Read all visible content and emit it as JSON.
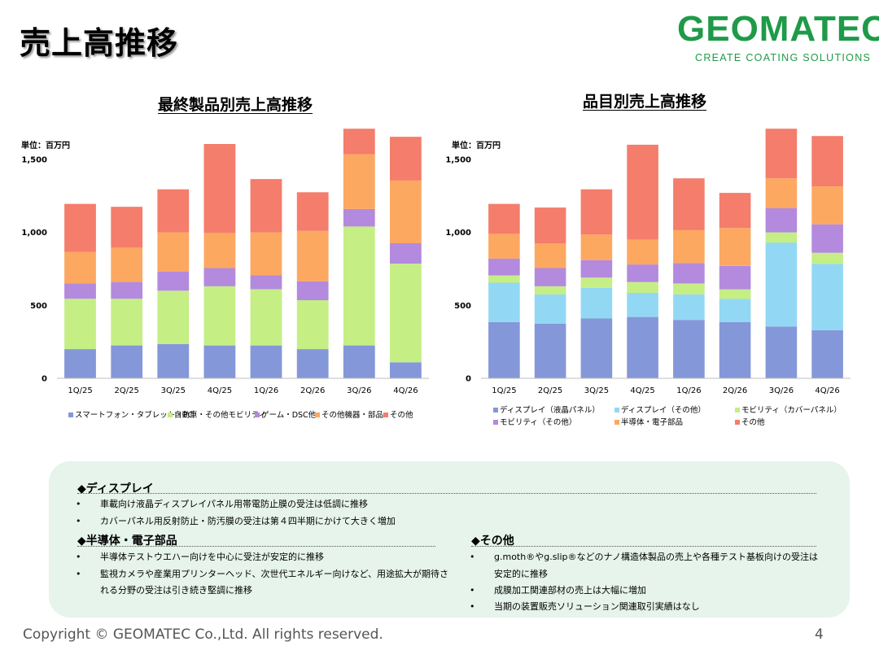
{
  "title": "売上高推移",
  "logo": {
    "name": "GEOMATEC",
    "tagline": "CREATE COATING SOLUTIONS"
  },
  "chart_data": [
    {
      "type": "bar",
      "stacked": true,
      "title": "最終製品別売上高推移",
      "unit_label": "単位：百万円",
      "categories": [
        "1Q/25",
        "2Q/25",
        "3Q/25",
        "4Q/25",
        "1Q/26",
        "2Q/26",
        "3Q/26",
        "4Q/26"
      ],
      "ylim": [
        0,
        1700
      ],
      "yticks": [
        0,
        500,
        1000,
        1500
      ],
      "ytick_labels": [
        "0",
        "500",
        "1,000",
        "1,500"
      ],
      "legend_position": "bottom",
      "series": [
        {
          "name": "スマートフォン・タブレット・PC",
          "color": "#8497d8",
          "values": [
            200,
            225,
            235,
            225,
            225,
            200,
            225,
            110
          ]
        },
        {
          "name": "自動車・その他モビリティ",
          "color": "#c5ee85",
          "values": [
            345,
            320,
            365,
            405,
            385,
            335,
            815,
            675
          ]
        },
        {
          "name": "ゲーム・DSC他",
          "color": "#b38ade",
          "values": [
            105,
            115,
            130,
            125,
            95,
            130,
            120,
            140
          ]
        },
        {
          "name": "その他機器・部品",
          "color": "#fca861",
          "values": [
            215,
            235,
            270,
            240,
            295,
            345,
            375,
            430
          ]
        },
        {
          "name": "その他",
          "color": "#f47d6c",
          "values": [
            330,
            280,
            295,
            610,
            365,
            265,
            175,
            300
          ]
        }
      ]
    },
    {
      "type": "bar",
      "stacked": true,
      "title": "品目別売上高推移",
      "unit_label": "単位：百万円",
      "categories": [
        "1Q/25",
        "2Q/25",
        "3Q/25",
        "4Q/25",
        "1Q/26",
        "2Q/26",
        "3Q/26",
        "4Q/26"
      ],
      "ylim": [
        0,
        1700
      ],
      "yticks": [
        0,
        500,
        1000,
        1500
      ],
      "ytick_labels": [
        "0",
        "500",
        "1,000",
        "1,500"
      ],
      "legend_position": "bottom",
      "series": [
        {
          "name": "ディスプレイ（液晶パネル）",
          "color": "#8497d8",
          "values": [
            385,
            375,
            410,
            420,
            400,
            385,
            355,
            330
          ]
        },
        {
          "name": "ディスプレイ（その他）",
          "color": "#92d8f4",
          "values": [
            270,
            200,
            210,
            165,
            175,
            160,
            575,
            455
          ]
        },
        {
          "name": "モビリティ（カバーパネル）",
          "color": "#c5ee85",
          "values": [
            50,
            55,
            70,
            75,
            75,
            65,
            70,
            75
          ]
        },
        {
          "name": "モビリティ（その他）",
          "color": "#b38ade",
          "values": [
            115,
            125,
            120,
            120,
            140,
            160,
            165,
            195
          ]
        },
        {
          "name": "半導体・電子部品",
          "color": "#fca861",
          "values": [
            170,
            170,
            175,
            170,
            225,
            260,
            205,
            260
          ]
        },
        {
          "name": "その他",
          "color": "#f47d6c",
          "values": [
            205,
            245,
            310,
            650,
            355,
            240,
            340,
            345
          ]
        }
      ]
    }
  ],
  "commentary": {
    "display": {
      "heading": "◆ディスプレイ",
      "bullets": [
        "車載向け液晶ディスプレイパネル用帯電防止膜の受注は低調に推移",
        "カバーパネル用反射防止・防汚膜の受注は第４四半期にかけて大きく増加"
      ]
    },
    "semiconductor": {
      "heading": "◆半導体・電子部品",
      "bullets": [
        [
          "半導体テストウエハー向けを中心に受注が安定的に推移"
        ],
        [
          "監視カメラや産業用プリンターヘッド、次世代エネルギー向けなど、用途拡大が期待さ",
          "れる分野の受注は引き続き堅調に推移"
        ]
      ]
    },
    "other": {
      "heading": "◆その他",
      "bullets": [
        [
          "g.moth®やg.slip®などのナノ構造体製品の売上や各種テスト基板向けの受注は",
          "安定的に推移"
        ],
        [
          "成膜加工関連部材の売上は大幅に増加"
        ],
        [
          "当期の装置販売ソリューション関連取引実績はなし"
        ]
      ]
    },
    "bullet_char": "•"
  },
  "footer": {
    "copyright": "Copyright  © GEOMATEC Co.,Ltd. All rights reserved.",
    "page": "4"
  }
}
